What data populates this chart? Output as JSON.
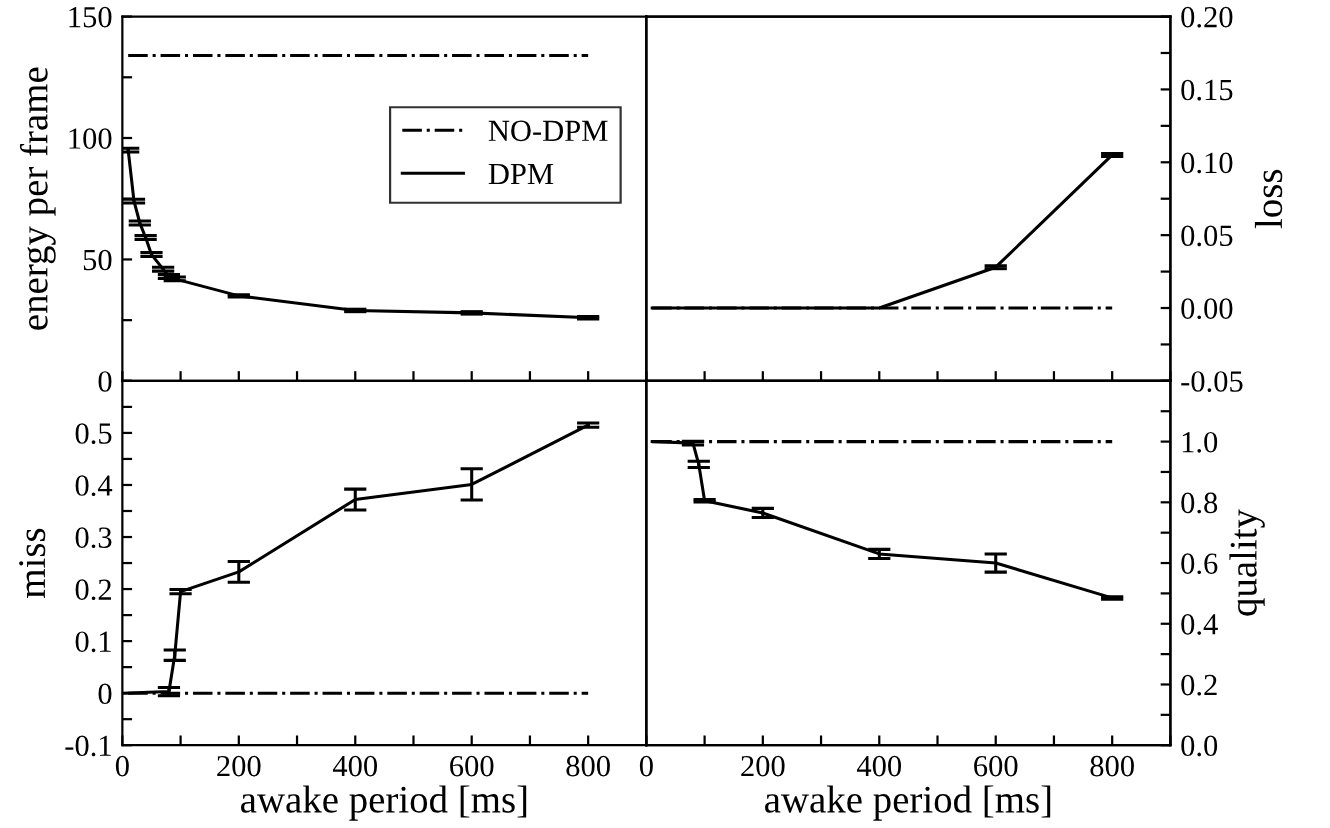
{
  "chart_data": [
    {
      "type": "line",
      "ylabel": "energy per frame",
      "xlim": [
        0,
        900
      ],
      "xticks": [
        0,
        {
          "value": 100,
          "label": null
        },
        200,
        {
          "value": 300,
          "label": null
        },
        400,
        {
          "value": 500,
          "label": null
        },
        600,
        {
          "value": 700,
          "label": null
        },
        800,
        {
          "value": 900,
          "label": null
        }
      ],
      "ylim": [
        0,
        150
      ],
      "yticks": [
        0,
        {
          "value": 25,
          "label": null
        },
        50,
        {
          "value": 75,
          "label": null
        },
        100,
        {
          "value": 125,
          "label": null
        },
        150
      ],
      "tick_labels": "y",
      "grid": false,
      "legend": "center right",
      "series": [
        {
          "name": "NO-DPM",
          "color": "#000000",
          "line_style": "dashdot",
          "x": [
            10,
            800
          ],
          "values": [
            134,
            134
          ]
        },
        {
          "name": "DPM",
          "color": "#000000",
          "line_style": "solid",
          "x": [
            10,
            20,
            30,
            40,
            50,
            70,
            80,
            90,
            200,
            400,
            600,
            800
          ],
          "values": [
            95,
            74,
            65,
            59,
            52,
            46,
            43,
            42,
            35,
            29,
            28,
            26
          ],
          "errors": [
            0.8,
            0.8,
            0.8,
            0.8,
            0.8,
            0.8,
            0.8,
            0.8,
            0.5,
            0.5,
            0.5,
            0.5
          ]
        }
      ]
    },
    {
      "type": "line",
      "y2label": "loss",
      "xlim": [
        0,
        900
      ],
      "xticks": [
        0,
        {
          "value": 100,
          "label": null
        },
        200,
        {
          "value": 300,
          "label": null
        },
        400,
        {
          "value": 500,
          "label": null
        },
        600,
        {
          "value": 700,
          "label": null
        },
        800,
        {
          "value": 900,
          "label": null
        }
      ],
      "y2lim": [
        -0.05,
        0.2
      ],
      "y2ticks": [
        {
          "value": -0.05,
          "label": "-0.05"
        },
        {
          "value": -0.025,
          "label": null
        },
        {
          "value": 0,
          "label": "0.00"
        },
        {
          "value": 0.025,
          "label": null
        },
        {
          "value": 0.05,
          "label": "0.05"
        },
        {
          "value": 0.075,
          "label": null
        },
        {
          "value": 0.1,
          "label": "0.10"
        },
        {
          "value": 0.125,
          "label": null
        },
        {
          "value": 0.15,
          "label": "0.15"
        },
        {
          "value": 0.175,
          "label": null
        },
        {
          "value": 0.2,
          "label": "0.20"
        }
      ],
      "tick_labels": "y",
      "grid": false,
      "series": [
        {
          "color": "#000000",
          "line_style": "dashdot",
          "axis": "y2",
          "x": [
            10,
            800
          ],
          "values": [
            0,
            0
          ]
        },
        {
          "color": "#000000",
          "line_style": "solid",
          "axis": "y2",
          "x": [
            10,
            400,
            600,
            800
          ],
          "values": [
            0,
            0,
            0.028,
            0.105
          ],
          "errors": [
            null,
            null,
            0.001,
            0.001
          ]
        }
      ]
    },
    {
      "type": "line",
      "xlabel": "awake period [ms]",
      "ylabel": "miss",
      "xlim": [
        0,
        900
      ],
      "xticks": [
        0,
        {
          "value": 100,
          "label": null
        },
        200,
        {
          "value": 300,
          "label": null
        },
        400,
        {
          "value": 500,
          "label": null
        },
        600,
        {
          "value": 700,
          "label": null
        },
        800,
        {
          "value": 900,
          "label": null
        }
      ],
      "ylim": [
        -0.1,
        0.6
      ],
      "yticks": [
        {
          "value": -0.1,
          "label": "-0.1"
        },
        {
          "value": -0.05,
          "label": null
        },
        0,
        {
          "value": 0.05,
          "label": null
        },
        0.1,
        {
          "value": 0.15,
          "label": null
        },
        0.2,
        {
          "value": 0.25,
          "label": null
        },
        0.3,
        {
          "value": 0.35,
          "label": null
        },
        0.4,
        {
          "value": 0.45,
          "label": null
        },
        0.5,
        {
          "value": 0.55,
          "label": null
        },
        {
          "value": 0.6,
          "label": null
        }
      ],
      "grid": false,
      "series": [
        {
          "color": "#000000",
          "line_style": "dashdot",
          "x": [
            10,
            800
          ],
          "values": [
            0,
            0
          ]
        },
        {
          "color": "#000000",
          "line_style": "solid",
          "x": [
            0,
            80,
            90,
            100,
            200,
            400,
            600,
            800
          ],
          "values": [
            0,
            0.003,
            0.073,
            0.195,
            0.233,
            0.372,
            0.401,
            0.515
          ],
          "errors": [
            null,
            0.008,
            0.01,
            0.004,
            0.02,
            0.02,
            0.03,
            0.004
          ]
        }
      ]
    },
    {
      "type": "line",
      "xlabel": "awake period [ms]",
      "y2label": "quality",
      "xlim": [
        0,
        900
      ],
      "xticks": [
        0,
        {
          "value": 100,
          "label": null
        },
        200,
        {
          "value": 300,
          "label": null
        },
        400,
        {
          "value": 500,
          "label": null
        },
        600,
        {
          "value": 700,
          "label": null
        },
        800,
        {
          "value": 900,
          "label": null
        }
      ],
      "y2lim": [
        0,
        1.2
      ],
      "y2ticks": [
        {
          "value": 0,
          "label": "0.0"
        },
        {
          "value": 0.1,
          "label": null
        },
        0.2,
        {
          "value": 0.3,
          "label": null
        },
        0.4,
        {
          "value": 0.5,
          "label": null
        },
        0.6,
        {
          "value": 0.7,
          "label": null
        },
        0.8,
        {
          "value": 0.9,
          "label": null
        },
        {
          "value": 1.0,
          "label": "1.0"
        },
        {
          "value": 1.1,
          "label": null
        },
        {
          "value": 1.2,
          "label": null
        }
      ],
      "grid": false,
      "series": [
        {
          "color": "#000000",
          "line_style": "dashdot",
          "axis": "y2",
          "x": [
            10,
            800
          ],
          "values": [
            1.0,
            1.0
          ]
        },
        {
          "color": "#000000",
          "line_style": "solid",
          "axis": "y2",
          "x": [
            10,
            80,
            90,
            100,
            200,
            400,
            600,
            800
          ],
          "values": [
            1.0,
            0.995,
            0.925,
            0.805,
            0.765,
            0.63,
            0.6,
            0.485
          ],
          "errors": [
            null,
            0.006,
            0.01,
            0.004,
            0.015,
            0.015,
            0.03,
            0.004
          ]
        }
      ]
    }
  ]
}
